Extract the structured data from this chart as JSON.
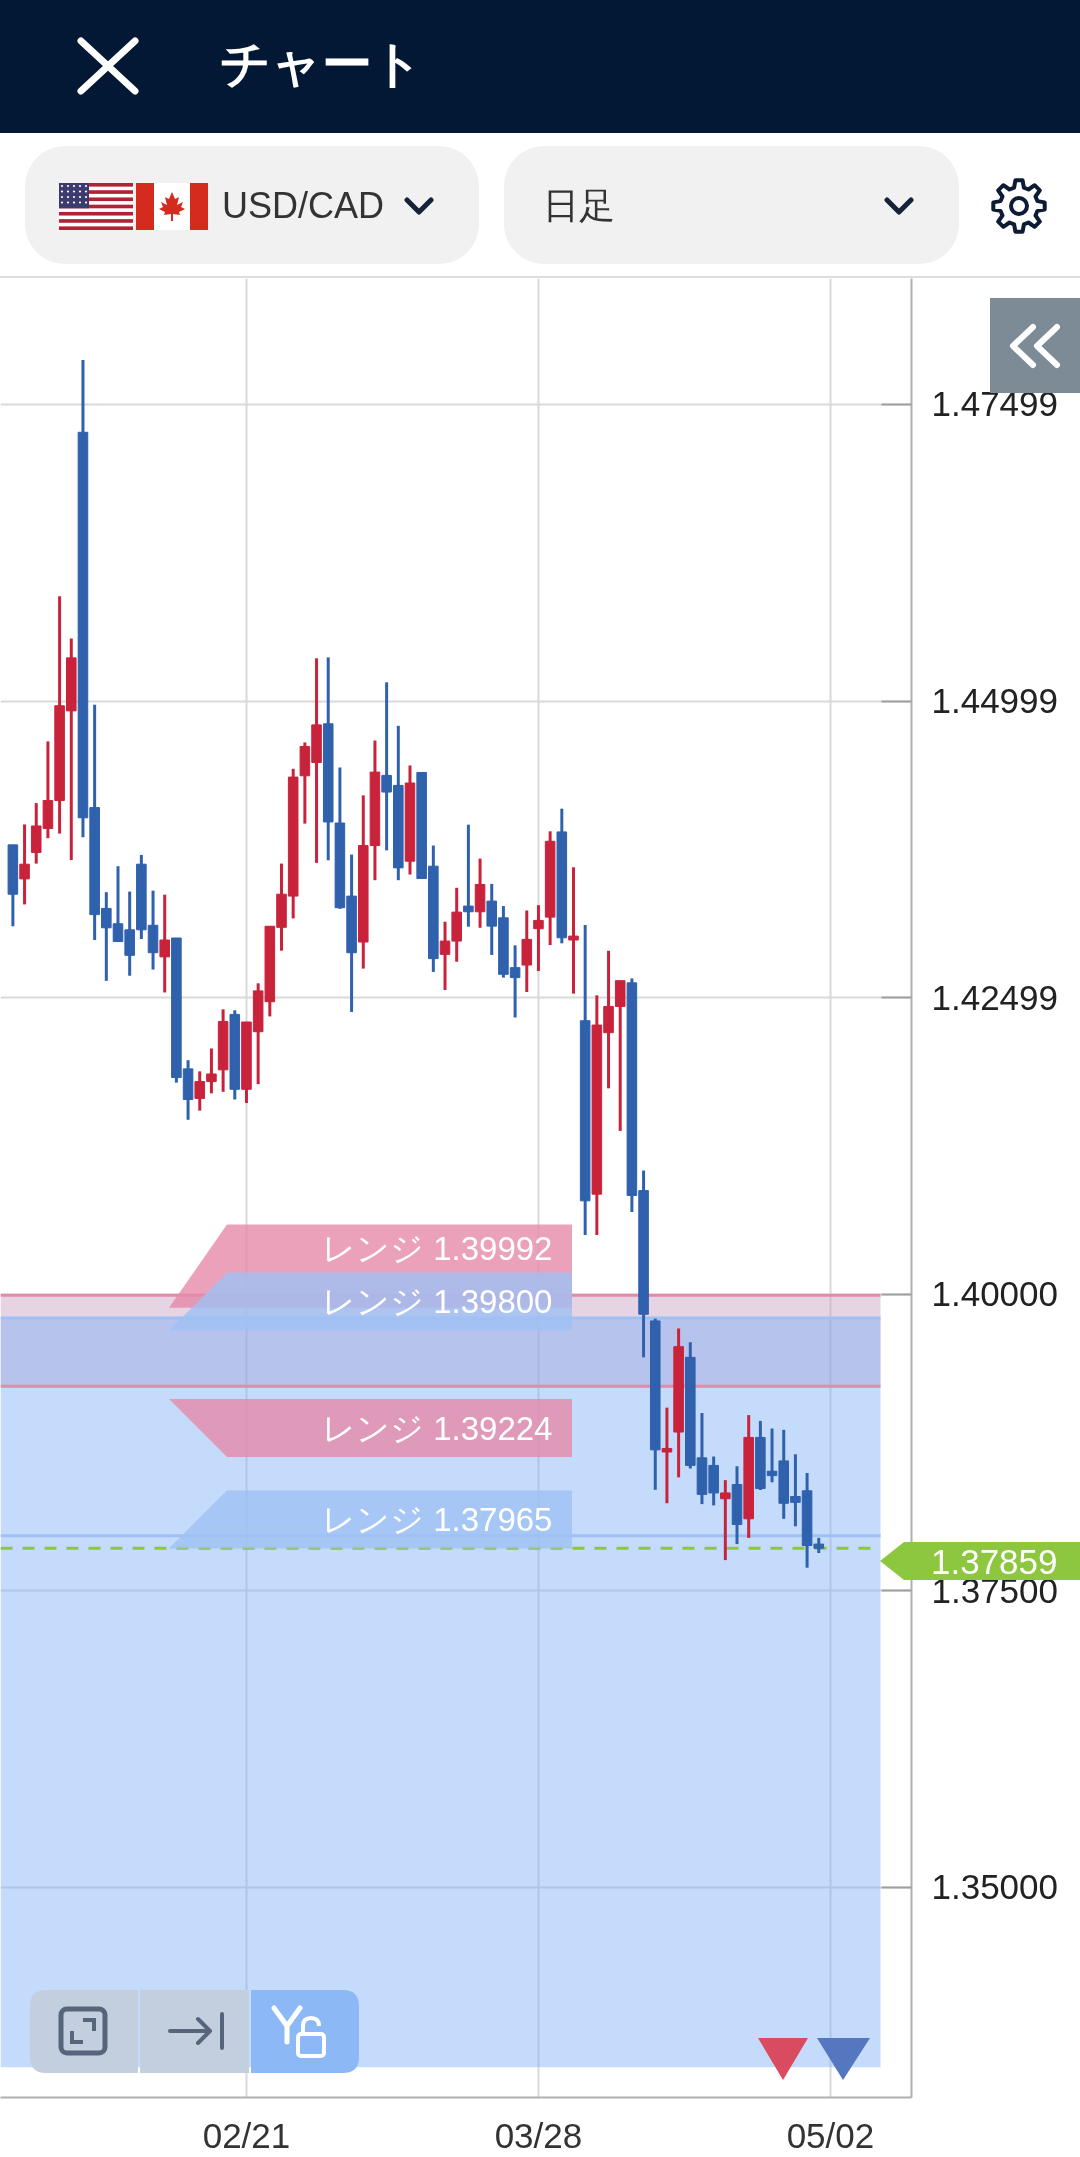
{
  "chart_data": {
    "type": "candlestick",
    "title": "チャート",
    "subtitle": "USD/CAD",
    "annotations": [
      "日足"
    ],
    "categories": [
      null,
      null,
      null,
      null,
      null,
      null,
      null,
      null,
      null,
      null,
      null,
      null,
      null,
      null,
      null,
      null,
      null,
      null,
      null,
      null,
      "02/21",
      null,
      null,
      null,
      null,
      null,
      null,
      null,
      null,
      null,
      null,
      null,
      null,
      null,
      null,
      null,
      null,
      null,
      null,
      null,
      null,
      null,
      null,
      null,
      null,
      "03/28",
      null,
      null,
      null,
      null,
      null,
      null,
      null,
      null,
      null,
      null,
      null,
      null,
      null,
      null,
      null,
      null,
      null,
      null,
      null,
      null,
      null,
      null,
      null,
      null,
      "05/02"
    ],
    "ohlc": [
      [
        1.43787,
        1.43787,
        1.43101,
        1.43371
      ],
      [
        1.435,
        1.43959,
        1.43285,
        1.43624
      ],
      [
        1.43723,
        1.44139,
        1.43629,
        1.43946
      ],
      [
        1.43925,
        1.44659,
        1.43843,
        1.44161
      ],
      [
        1.44161,
        1.45882,
        1.43882,
        1.44959
      ],
      [
        1.44916,
        1.45526,
        1.43659,
        1.45363
      ],
      [
        1.47264,
        1.47873,
        1.43852,
        1.44015
      ],
      [
        1.44101,
        1.44968,
        1.42985,
        1.43199
      ],
      [
        1.43251,
        1.43388,
        1.42641,
        1.43088
      ],
      [
        1.43122,
        1.43607,
        1.42972,
        1.42972
      ],
      [
        1.43071,
        1.43393,
        1.42684,
        1.42856
      ],
      [
        1.43624,
        1.43702,
        1.42993,
        1.43071
      ],
      [
        1.43109,
        1.43401,
        1.42736,
        1.42878
      ],
      [
        1.42843,
        1.43367,
        1.42543,
        1.42985
      ],
      [
        1.43002,
        1.43002,
        1.41783,
        1.41826
      ],
      [
        1.41899,
        1.41972,
        1.4147,
        1.41641
      ],
      [
        1.4165,
        1.41878,
        1.41547,
        1.41792
      ],
      [
        1.41792,
        1.42071,
        1.41693,
        1.41856
      ],
      [
        1.41891,
        1.42401,
        1.41706,
        1.42298
      ],
      [
        1.42358,
        1.42393,
        1.41641,
        1.41727
      ],
      [
        1.41727,
        1.42294,
        1.41611,
        1.42294
      ],
      [
        1.42212,
        1.4262,
        1.4177,
        1.42556
      ],
      [
        1.42465,
        1.43101,
        1.42341,
        1.43101
      ],
      [
        1.43092,
        1.43629,
        1.42895,
        1.43371
      ],
      [
        1.43355,
        1.44428,
        1.43167,
        1.44358
      ],
      [
        1.44369,
        1.4465,
        1.43966,
        1.44616
      ],
      [
        1.44481,
        1.45359,
        1.43635,
        1.44798
      ],
      [
        1.44807,
        1.45367,
        1.43657,
        1.4398
      ],
      [
        1.43971,
        1.44439,
        1.43248,
        1.43257
      ],
      [
        1.43355,
        1.43705,
        1.42379,
        1.42878
      ],
      [
        1.42968,
        1.44204,
        1.42744,
        1.43781
      ],
      [
        1.43781,
        1.44666,
        1.43489,
        1.444
      ],
      [
        1.44372,
        1.45157,
        1.43741,
        1.44232
      ],
      [
        1.44288,
        1.4479,
        1.43489,
        1.43593
      ],
      [
        1.43649,
        1.44456,
        1.43537,
        1.44308
      ],
      [
        1.44397,
        1.44397,
        1.435,
        1.43503
      ],
      [
        1.43607,
        1.43781,
        1.42716,
        1.42828
      ],
      [
        1.42864,
        1.43139,
        1.42564,
        1.42976
      ],
      [
        1.42976,
        1.43425,
        1.42802,
        1.4322
      ],
      [
        1.43271,
        1.43957,
        1.43097,
        1.43223
      ],
      [
        1.43223,
        1.43671,
        1.43088,
        1.43453
      ],
      [
        1.43313,
        1.43458,
        1.42859,
        1.43102
      ],
      [
        1.43172,
        1.43271,
        1.42668,
        1.42696
      ],
      [
        1.42752,
        1.4294,
        1.42332,
        1.42668
      ],
      [
        1.42774,
        1.43234,
        1.42547,
        1.4299
      ],
      [
        1.4308,
        1.43279,
        1.42724,
        1.4315
      ],
      [
        1.43178,
        1.43901,
        1.42943,
        1.43817
      ],
      [
        1.43896,
        1.44092,
        1.42957,
        1.43004
      ],
      [
        1.42985,
        1.43598,
        1.42533,
        1.43018
      ],
      [
        1.42305,
        1.43111,
        1.40499,
        1.40787
      ],
      [
        1.40843,
        1.42519,
        1.40499,
        1.42268
      ],
      [
        1.42204,
        1.42894,
        1.41735,
        1.42425
      ],
      [
        1.42425,
        1.42642,
        1.41376,
        1.42642
      ],
      [
        1.42624,
        1.42661,
        1.40693,
        1.40832
      ],
      [
        1.40873,
        1.41042,
        1.39468,
        1.39831
      ],
      [
        1.39775,
        1.39794,
        1.38351,
        1.38688
      ],
      [
        1.3867,
        1.39044,
        1.38238,
        1.387
      ],
      [
        1.38838,
        1.39711,
        1.38456,
        1.39558
      ],
      [
        1.39468,
        1.39595,
        1.38531,
        1.38557
      ],
      [
        1.38621,
        1.38999,
        1.38231,
        1.38313
      ],
      [
        1.38557,
        1.38632,
        1.3822,
        1.38325
      ],
      [
        1.38276,
        1.38433,
        1.37759,
        1.38325
      ],
      [
        1.38396,
        1.3855,
        1.37894,
        1.38059
      ],
      [
        1.38107,
        1.38981,
        1.37946,
        1.38793
      ],
      [
        1.38793,
        1.38932,
        1.3835,
        1.38362
      ],
      [
        1.38508,
        1.38868,
        1.38415,
        1.38471
      ],
      [
        1.38595,
        1.38857,
        1.38107,
        1.38238
      ],
      [
        1.38295,
        1.38651,
        1.38044,
        1.38246
      ],
      [
        1.38343,
        1.38493,
        1.37695,
        1.37882
      ],
      [
        1.37894,
        1.37946,
        1.37819,
        1.37859
      ],
      null
    ],
    "colors": [
      "#2f61ad",
      "#c9233c",
      "#c9233c",
      "#c9233c",
      "#c9233c",
      "#c9233c",
      "#2f61ad",
      "#2f61ad",
      "#2f61ad",
      "#2f61ad",
      "#2f61ad",
      "#2f61ad",
      "#2f61ad",
      "#c9233c",
      "#2f61ad",
      "#2f61ad",
      "#c9233c",
      "#c9233c",
      "#c9233c",
      "#2f61ad",
      "#c9233c",
      "#c9233c",
      "#c9233c",
      "#c9233c",
      "#c9233c",
      "#c9233c",
      "#c9233c",
      "#2f61ad",
      "#2f61ad",
      "#2f61ad",
      "#c9233c",
      "#c9233c",
      "#2f61ad",
      "#2f61ad",
      "#c9233c",
      "#2f61ad",
      "#2f61ad",
      "#c9233c",
      "#c9233c",
      "#2f61ad",
      "#c9233c",
      "#2f61ad",
      "#2f61ad",
      "#2f61ad",
      "#c9233c",
      "#c9233c",
      "#c9233c",
      "#2f61ad",
      "#c9233c",
      "#2f61ad",
      "#c9233c",
      "#c9233c",
      "#c9233c",
      "#2f61ad",
      "#2f61ad",
      "#2f61ad",
      "#c9233c",
      "#c9233c",
      "#2f61ad",
      "#2f61ad",
      "#2f61ad",
      "#c9233c",
      "#2f61ad",
      "#c9233c",
      "#2f61ad",
      "#2f61ad",
      "#2f61ad",
      "#2f61ad",
      "#2f61ad",
      "#2f61ad",
      null
    ],
    "ylim": [
      1.3323,
      1.4856
    ],
    "yticks": [
      1.47499,
      1.44999,
      1.42499,
      {
        "value": 1.4,
        "label": "1.40000"
      },
      {
        "value": 1.375,
        "label": "1.37500"
      },
      {
        "value": 1.35,
        "label": "1.35000"
      }
    ],
    "grid": true,
    "bands": [
      {
        "axis": "y",
        "from": 1.39224,
        "to": 1.39992,
        "color": "#c79dc1"
      },
      {
        "axis": "y",
        "from": 1.33485,
        "to": 1.398,
        "color": "#7cafF6"
      }
    ],
    "ref_lines": [
      {
        "axis": "y",
        "value": 1.39992,
        "label": "レンジ 1.39992",
        "color": "#e58aa8"
      },
      {
        "axis": "y",
        "value": 1.398,
        "label": "レンジ 1.39800",
        "color": "#9fc0f4"
      },
      {
        "axis": "y",
        "value": 1.39224,
        "label": "レンジ 1.39224",
        "color": "#e58aa8"
      },
      {
        "axis": "y",
        "value": 1.37965,
        "label": "レンジ 1.37965",
        "color": "#9fc0f4"
      },
      {
        "axis": "y",
        "value": 1.37859,
        "label": "1.37859",
        "color": "#8dc63f",
        "line_style": "dashed"
      }
    ]
  }
}
